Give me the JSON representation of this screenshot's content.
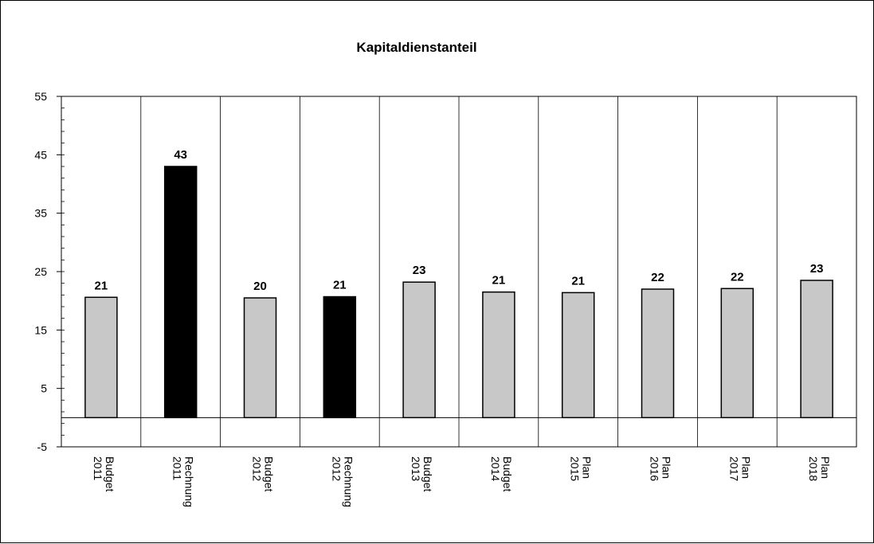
{
  "chart_data": {
    "type": "bar",
    "title": "Kapitaldienstanteil",
    "categories": [
      [
        "Budget",
        "2011"
      ],
      [
        "Rechnung",
        "2011"
      ],
      [
        "Budget",
        "2012"
      ],
      [
        "Rechnung",
        "2012"
      ],
      [
        "Budget",
        "2013"
      ],
      [
        "Budget",
        "2014"
      ],
      [
        "Plan",
        "2015"
      ],
      [
        "Plan",
        "2016"
      ],
      [
        "Plan",
        "2017"
      ],
      [
        "Plan",
        "2018"
      ]
    ],
    "values": [
      20.6,
      43.0,
      20.5,
      20.7,
      23.2,
      21.5,
      21.4,
      22.0,
      22.1,
      23.5
    ],
    "data_labels": [
      "21",
      "43",
      "20",
      "21",
      "23",
      "21",
      "21",
      "22",
      "22",
      "23"
    ],
    "bar_colors": [
      "#c8c8c8",
      "#000000",
      "#c8c8c8",
      "#000000",
      "#c8c8c8",
      "#c8c8c8",
      "#c8c8c8",
      "#c8c8c8",
      "#c8c8c8",
      "#c8c8c8"
    ],
    "yticks": [
      "55",
      "45",
      "35",
      "25",
      "15",
      "5",
      "-5"
    ],
    "ylim": [
      -5,
      55
    ],
    "ytick_step": 10,
    "minor_tick_step": 2,
    "grid": "vertical category separators",
    "legend": "none"
  }
}
